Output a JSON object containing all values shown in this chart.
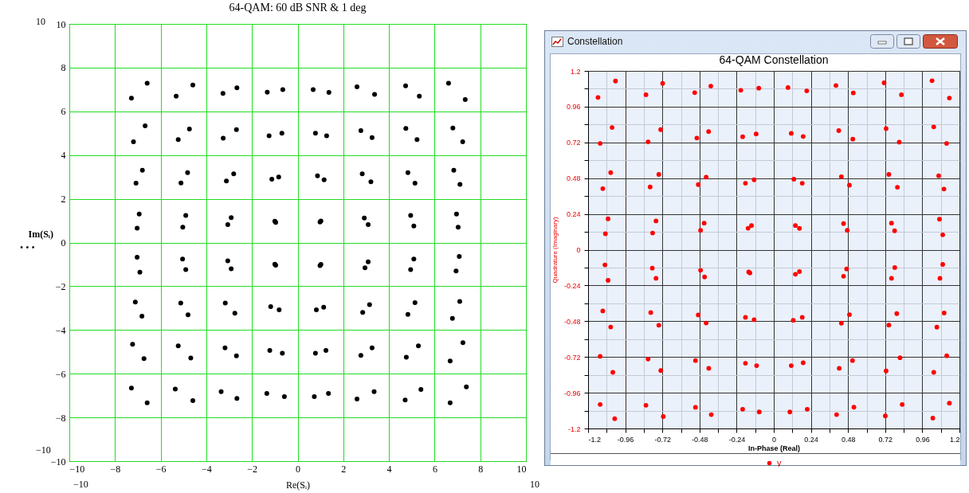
{
  "chart_data": [
    {
      "type": "scatter",
      "title": "64-QAM: 60 dB SNR & 1 deg",
      "xlabel": "Re(Sᵢ)",
      "ylabel": "Im(Sᵢ)",
      "annotations": [
        "10",
        "−10",
        "−10",
        "10",
        "• • •"
      ],
      "series": [
        {
          "color": "#000000",
          "x": [
            -7.28,
            -6.59,
            -5.32,
            -4.59,
            -3.27,
            -2.66,
            -1.33,
            -0.65,
            0.68,
            1.37,
            2.6,
            3.37,
            4.73,
            5.33,
            6.61,
            7.34,
            -7.19,
            -6.68,
            -5.23,
            -4.74,
            -3.26,
            -2.68,
            -1.25,
            -0.69,
            0.78,
            1.27,
            2.77,
            3.26,
            4.74,
            5.23,
            6.8,
            7.23,
            -7.08,
            -6.8,
            -5.11,
            -4.82,
            -3.12,
            -2.8,
            -1.13,
            -0.83,
            0.87,
            1.16,
            2.83,
            3.21,
            4.83,
            5.14,
            6.84,
            7.11,
            -7.03,
            -6.94,
            -5.03,
            -4.9,
            -3.06,
            -2.91,
            -1.0,
            -0.96,
            0.98,
            1.02,
            2.92,
            3.09,
            4.95,
            5.09,
            6.96,
            7.03,
            -7.03,
            -6.91,
            -5.04,
            -4.9,
            -3.06,
            -2.91,
            -1.0,
            -0.96,
            0.98,
            1.02,
            2.95,
            3.09,
            4.95,
            5.09,
            6.94,
            7.08,
            -7.11,
            -6.82,
            -5.12,
            -4.8,
            -3.17,
            -2.75,
            -1.18,
            -0.81,
            0.82,
            1.14,
            2.85,
            3.15,
            4.83,
            5.14,
            6.78,
            7.1,
            -7.23,
            -6.73,
            -5.23,
            -4.68,
            -3.18,
            -2.68,
            -1.22,
            -0.67,
            0.78,
            1.24,
            2.77,
            3.26,
            4.76,
            5.29,
            6.68,
            7.24,
            -7.28,
            -6.59,
            -5.36,
            -4.59,
            -3.35,
            -2.66,
            -1.35,
            -0.58,
            0.73,
            1.35,
            2.6,
            3.35,
            4.71,
            5.4,
            6.68,
            7.39
          ],
          "values": [
            6.6,
            7.29,
            6.69,
            7.2,
            6.82,
            7.08,
            6.88,
            6.99,
            6.99,
            6.87,
            7.12,
            6.78,
            7.17,
            6.69,
            7.29,
            6.54,
            4.61,
            5.34,
            4.71,
            5.19,
            4.77,
            5.16,
            4.88,
            5.0,
            5.0,
            4.88,
            5.12,
            4.8,
            5.22,
            4.71,
            5.24,
            4.61,
            2.71,
            3.31,
            2.72,
            3.2,
            2.81,
            3.14,
            2.9,
            3.0,
            3.05,
            2.87,
            3.14,
            2.78,
            3.2,
            2.71,
            3.31,
            2.66,
            0.66,
            1.3,
            0.7,
            1.24,
            0.82,
            1.14,
            0.97,
            0.92,
            0.94,
            0.98,
            1.12,
            0.82,
            1.24,
            0.76,
            1.3,
            0.7,
            -0.67,
            -1.36,
            -0.76,
            -1.24,
            -0.84,
            -1.2,
            -0.99,
            -1.04,
            -1.06,
            -1.0,
            -1.16,
            -0.88,
            -1.24,
            -0.76,
            -1.3,
            -0.64,
            -2.72,
            -3.37,
            -2.77,
            -3.31,
            -2.77,
            -3.23,
            -2.93,
            -3.08,
            -3.08,
            -2.96,
            -3.2,
            -2.84,
            -3.29,
            -2.75,
            -3.47,
            -2.7,
            -4.65,
            -5.31,
            -4.73,
            -5.28,
            -4.82,
            -5.18,
            -4.94,
            -5.06,
            -5.06,
            -4.94,
            -5.16,
            -4.82,
            -5.25,
            -4.73,
            -5.42,
            -4.58,
            -6.66,
            -7.33,
            -6.7,
            -7.23,
            -6.82,
            -7.13,
            -6.9,
            -7.05,
            -7.05,
            -6.9,
            -7.16,
            -6.82,
            -7.2,
            -6.72,
            -7.33,
            -6.6
          ]
        }
      ],
      "xlim": [
        -10,
        10
      ],
      "ylim": [
        -10,
        10
      ],
      "xticks": [
        -10,
        -8,
        -6,
        -4,
        -2,
        0,
        2,
        4,
        6,
        8,
        10
      ],
      "yticks": [
        -10,
        -8,
        -6,
        -4,
        -2,
        0,
        2,
        4,
        6,
        8,
        10
      ],
      "grid": true,
      "marker": "circle",
      "legend": false
    },
    {
      "type": "scatter",
      "title": "64-QAM Constellation",
      "xlabel": "In-Phase (Real)",
      "ylabel": "Quadrature (Imaginary)",
      "annotations": [
        "Constellation"
      ],
      "series": [
        {
          "name": "y",
          "color": "#ff0000",
          "x": [
            -1.136,
            -1.023,
            -0.826,
            -0.718,
            -0.511,
            -0.407,
            -0.213,
            -0.097,
            0.092,
            0.213,
            0.402,
            0.514,
            0.713,
            0.825,
            1.023,
            1.135,
            -1.122,
            -1.045,
            -0.812,
            -0.731,
            -0.497,
            -0.421,
            -0.201,
            -0.114,
            0.113,
            0.19,
            0.42,
            0.511,
            0.726,
            0.811,
            1.034,
            1.117,
            -1.105,
            -1.054,
            -0.799,
            -0.743,
            -0.488,
            -0.437,
            -0.183,
            -0.127,
            0.13,
            0.184,
            0.437,
            0.489,
            0.744,
            0.799,
            1.066,
            1.1,
            -1.088,
            -1.071,
            -0.783,
            -0.761,
            -0.473,
            -0.45,
            -0.166,
            -0.144,
            0.14,
            0.166,
            0.451,
            0.475,
            0.761,
            0.781,
            1.071,
            1.092,
            -1.091,
            -1.071,
            -0.785,
            -0.761,
            -0.473,
            -0.447,
            -0.162,
            -0.154,
            0.14,
            0.166,
            0.451,
            0.471,
            0.761,
            0.782,
            1.074,
            1.092,
            -1.105,
            -1.054,
            -0.795,
            -0.743,
            -0.488,
            -0.437,
            -0.183,
            -0.127,
            0.126,
            0.184,
            0.437,
            0.489,
            0.744,
            0.795,
            1.054,
            1.101,
            -1.122,
            -1.04,
            -0.812,
            -0.73,
            -0.506,
            -0.42,
            -0.183,
            -0.111,
            0.113,
            0.19,
            0.423,
            0.509,
            0.726,
            0.816,
            1.034,
            1.118,
            -1.122,
            -1.028,
            -0.826,
            -0.714,
            -0.506,
            -0.404,
            -0.201,
            -0.094,
            0.104,
            0.216,
            0.406,
            0.518,
            0.721,
            0.83,
            1.028,
            1.135
          ],
          "values": [
            1.022,
            1.132,
            1.04,
            1.116,
            1.054,
            1.098,
            1.07,
            1.084,
            1.088,
            1.066,
            1.102,
            1.052,
            1.12,
            1.04,
            1.134,
            1.018,
            0.713,
            0.82,
            0.724,
            0.806,
            0.749,
            0.793,
            0.758,
            0.777,
            0.781,
            0.76,
            0.799,
            0.742,
            0.813,
            0.722,
            0.824,
            0.713,
            0.41,
            0.517,
            0.421,
            0.505,
            0.437,
            0.487,
            0.446,
            0.469,
            0.473,
            0.446,
            0.49,
            0.433,
            0.505,
            0.419,
            0.496,
            0.407,
            0.107,
            0.207,
            0.112,
            0.193,
            0.13,
            0.178,
            0.144,
            0.162,
            0.162,
            0.143,
            0.175,
            0.13,
            0.178,
            0.127,
            0.205,
            0.1,
            -0.102,
            -0.206,
            -0.124,
            -0.192,
            -0.138,
            -0.183,
            -0.149,
            -0.156,
            -0.165,
            -0.147,
            -0.178,
            -0.129,
            -0.192,
            -0.12,
            -0.192,
            -0.099,
            -0.411,
            -0.519,
            -0.422,
            -0.507,
            -0.438,
            -0.492,
            -0.454,
            -0.47,
            -0.474,
            -0.454,
            -0.493,
            -0.436,
            -0.506,
            -0.429,
            -0.52,
            -0.425,
            -0.716,
            -0.823,
            -0.734,
            -0.811,
            -0.744,
            -0.796,
            -0.762,
            -0.778,
            -0.778,
            -0.759,
            -0.796,
            -0.744,
            -0.814,
            -0.725,
            -0.823,
            -0.712,
            -1.039,
            -1.134,
            -1.044,
            -1.12,
            -1.058,
            -1.107,
            -1.071,
            -1.089,
            -1.089,
            -1.071,
            -1.107,
            -1.057,
            -1.116,
            -1.039,
            -1.13,
            -1.03
          ]
        }
      ],
      "xlim": [
        -1.2,
        1.2
      ],
      "ylim": [
        -1.2,
        1.2
      ],
      "xticks": [
        -1.2,
        {
          "value": -1.08,
          "label": null
        },
        -0.96,
        {
          "value": -0.84,
          "label": null
        },
        -0.72,
        {
          "value": -0.6,
          "label": null
        },
        -0.48,
        {
          "value": -0.36,
          "label": null
        },
        -0.24,
        {
          "value": -0.12,
          "label": null
        },
        0,
        {
          "value": 0.12,
          "label": null
        },
        0.24,
        {
          "value": 0.36,
          "label": null
        },
        0.48,
        {
          "value": 0.6,
          "label": null
        },
        0.72,
        {
          "value": 0.84,
          "label": null
        },
        0.96,
        {
          "value": 1.08,
          "label": null
        },
        1.2
      ],
      "yticks": [
        -1.2,
        {
          "value": -1.08,
          "label": null
        },
        -0.96,
        {
          "value": -0.84,
          "label": null
        },
        -0.72,
        {
          "value": -0.6,
          "label": null
        },
        -0.48,
        {
          "value": -0.36,
          "label": null
        },
        -0.24,
        {
          "value": -0.12,
          "label": null
        },
        0,
        {
          "value": 0.12,
          "label": null
        },
        0.24,
        {
          "value": 0.36,
          "label": null
        },
        0.48,
        {
          "value": 0.6,
          "label": null
        },
        0.72,
        {
          "value": 0.84,
          "label": null
        },
        0.96,
        {
          "value": 1.08,
          "label": null
        },
        1.2
      ],
      "grid": true,
      "marker": "circle",
      "legend": "bottom"
    }
  ]
}
